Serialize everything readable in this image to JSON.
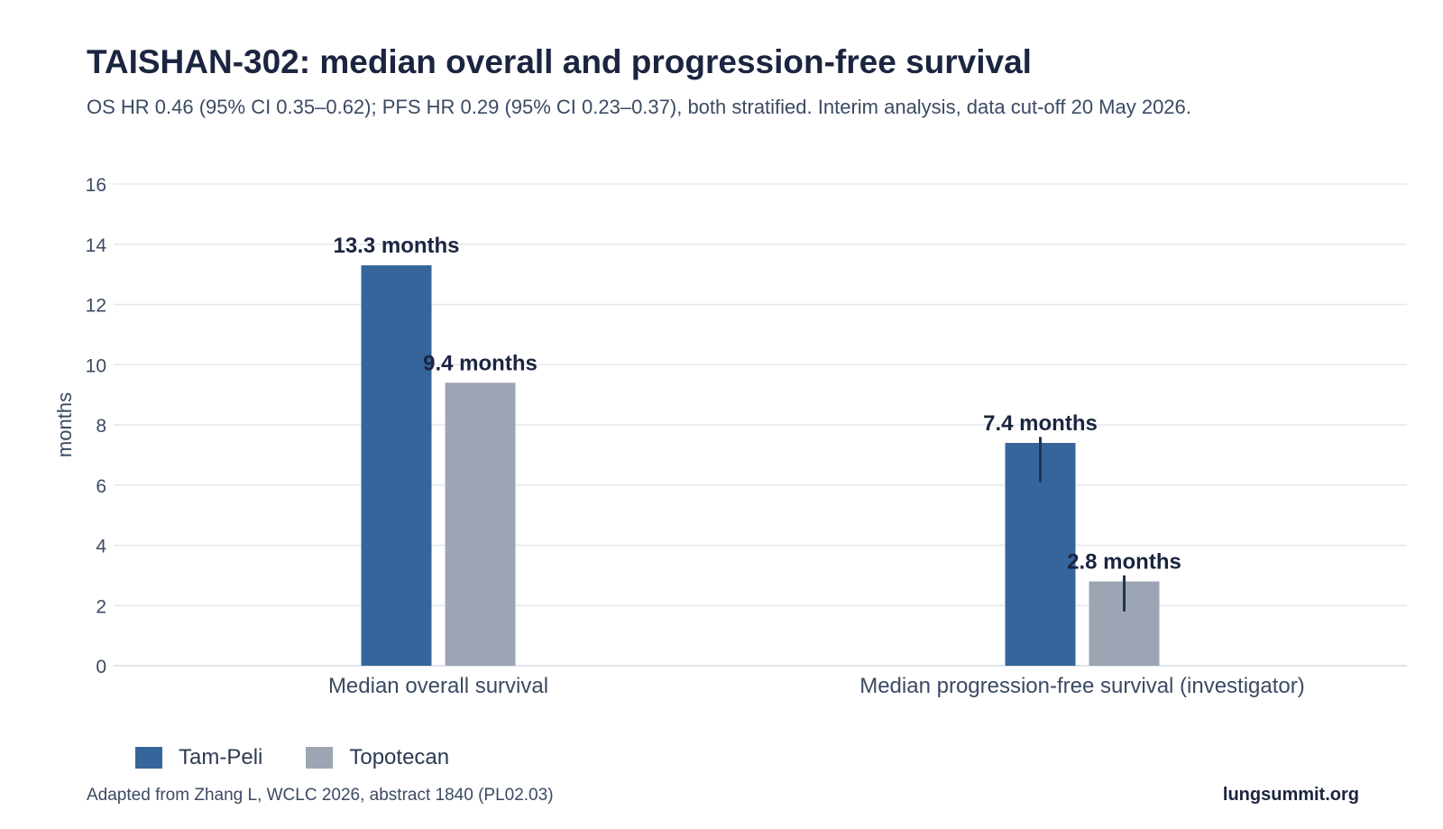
{
  "header": {
    "title": "TAISHAN-302: median overall and progression-free survival",
    "subtitle": "OS HR 0.46 (95% CI 0.35–0.62); PFS HR 0.29 (95% CI 0.23–0.37), both stratified. Interim analysis, data cut-off 20 May 2026."
  },
  "footer": {
    "source": "Adapted from Zhang L, WCLC 2026, abstract 1840 (PL02.03)",
    "brand": "lungsummit.org"
  },
  "chart_data": {
    "type": "bar",
    "title": "TAISHAN-302: median overall and progression-free survival",
    "subtitle": "OS HR 0.46 (95% CI 0.35–0.62); PFS HR 0.29 (95% CI 0.23–0.37), both stratified. Interim analysis, data cut-off 20 May 2026.",
    "xlabel": "",
    "ylabel": "months",
    "ylim": [
      0,
      16
    ],
    "yticks": [
      0,
      2,
      4,
      6,
      8,
      10,
      12,
      14,
      16
    ],
    "grid": true,
    "legend_position": "bottom-left",
    "categories": [
      "Median overall survival",
      "Median progression-free survival (investigator)"
    ],
    "series": [
      {
        "name": "Tam-Peli",
        "color": "#35659a",
        "values": [
          13.3,
          7.4
        ],
        "labels": [
          "13.3 months",
          "7.4 months"
        ],
        "error_bars": [
          null,
          [
            6.1,
            7.6
          ]
        ]
      },
      {
        "name": "Topotecan",
        "color": "#9da5b4",
        "values": [
          9.4,
          2.8
        ],
        "labels": [
          "9.4 months",
          "2.8 months"
        ],
        "error_bars": [
          null,
          [
            1.8,
            3.0
          ]
        ]
      }
    ]
  }
}
